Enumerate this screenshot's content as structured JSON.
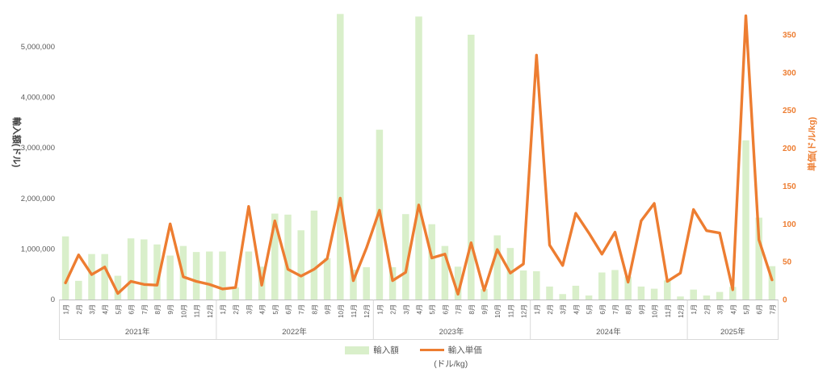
{
  "chart_data": {
    "type": "combo-bar-line",
    "left_axis": {
      "title": "輸入額(ドル)",
      "tick_values": [
        0,
        1000000,
        2000000,
        3000000,
        4000000,
        5000000
      ],
      "tick_labels": [
        "0",
        "1,000,000",
        "2,000,000",
        "3,000,000",
        "4,000,000",
        "5,000,000"
      ],
      "max": 6000000,
      "text_color": "#595959",
      "title_color": "#404040"
    },
    "right_axis": {
      "title": "単価(ドル/kg)",
      "tick_values": [
        0,
        50,
        100,
        150,
        200,
        250,
        300,
        350
      ],
      "tick_labels": [
        "0",
        "50",
        "100",
        "150",
        "200",
        "250",
        "300",
        "350"
      ],
      "max": 400,
      "text_color": "#ed7d31",
      "title_color": "#ed7d31"
    },
    "years": [
      {
        "label": "2021年",
        "months": [
          "1月",
          "2月",
          "3月",
          "4月",
          "5月",
          "6月",
          "7月",
          "8月",
          "9月",
          "10月",
          "11月",
          "12月"
        ]
      },
      {
        "label": "2022年",
        "months": [
          "1月",
          "2月",
          "3月",
          "4月",
          "5月",
          "6月",
          "7月",
          "8月",
          "9月",
          "10月",
          "11月",
          "12月"
        ]
      },
      {
        "label": "2023年",
        "months": [
          "1月",
          "2月",
          "3月",
          "4月",
          "5月",
          "6月",
          "7月",
          "8月",
          "9月",
          "10月",
          "11月",
          "12月"
        ]
      },
      {
        "label": "2024年",
        "months": [
          "1月",
          "2月",
          "3月",
          "4月",
          "5月",
          "6月",
          "7月",
          "8月",
          "9月",
          "10月",
          "11月",
          "12月"
        ]
      },
      {
        "label": "2025年",
        "months": [
          "1月",
          "2月",
          "3月",
          "4月",
          "5月",
          "6月",
          "7月"
        ]
      }
    ],
    "series": [
      {
        "name": "輸入額",
        "type": "bar",
        "axis": "left",
        "color": "#d9efca",
        "values": [
          1250000,
          370000,
          900000,
          900000,
          470000,
          1210000,
          1190000,
          1090000,
          870000,
          1060000,
          940000,
          950000,
          950000,
          240000,
          950000,
          650000,
          1700000,
          1680000,
          1370000,
          1760000,
          820000,
          5650000,
          590000,
          640000,
          3360000,
          640000,
          1690000,
          5600000,
          1490000,
          1060000,
          650000,
          5240000,
          210000,
          1270000,
          1020000,
          575000,
          560000,
          257000,
          108000,
          273000,
          80000,
          535000,
          584000,
          455000,
          257000,
          214000,
          380000,
          60000,
          197000,
          80000,
          150000,
          250000,
          3150000,
          1620000,
          660000
        ]
      },
      {
        "name": "輸入単価",
        "legend_note": "(ドル/kg)",
        "type": "line",
        "axis": "right",
        "color": "#ed7d31",
        "values": [
          22,
          59,
          33,
          43,
          8,
          24,
          20,
          19,
          100,
          30,
          24,
          20,
          14,
          16,
          123,
          19,
          104,
          40,
          31,
          40,
          54,
          134,
          25,
          68,
          118,
          25,
          36,
          125,
          55,
          60,
          7,
          75,
          12,
          66,
          35,
          47,
          323,
          72,
          45,
          114,
          88,
          60,
          89,
          23,
          104,
          127,
          24,
          35,
          119,
          91,
          88,
          13,
          375,
          79,
          26
        ]
      }
    ],
    "grid_color": "#bfbfbf",
    "divider_color": "#d9d9d9",
    "category_text_color": "#595959"
  }
}
